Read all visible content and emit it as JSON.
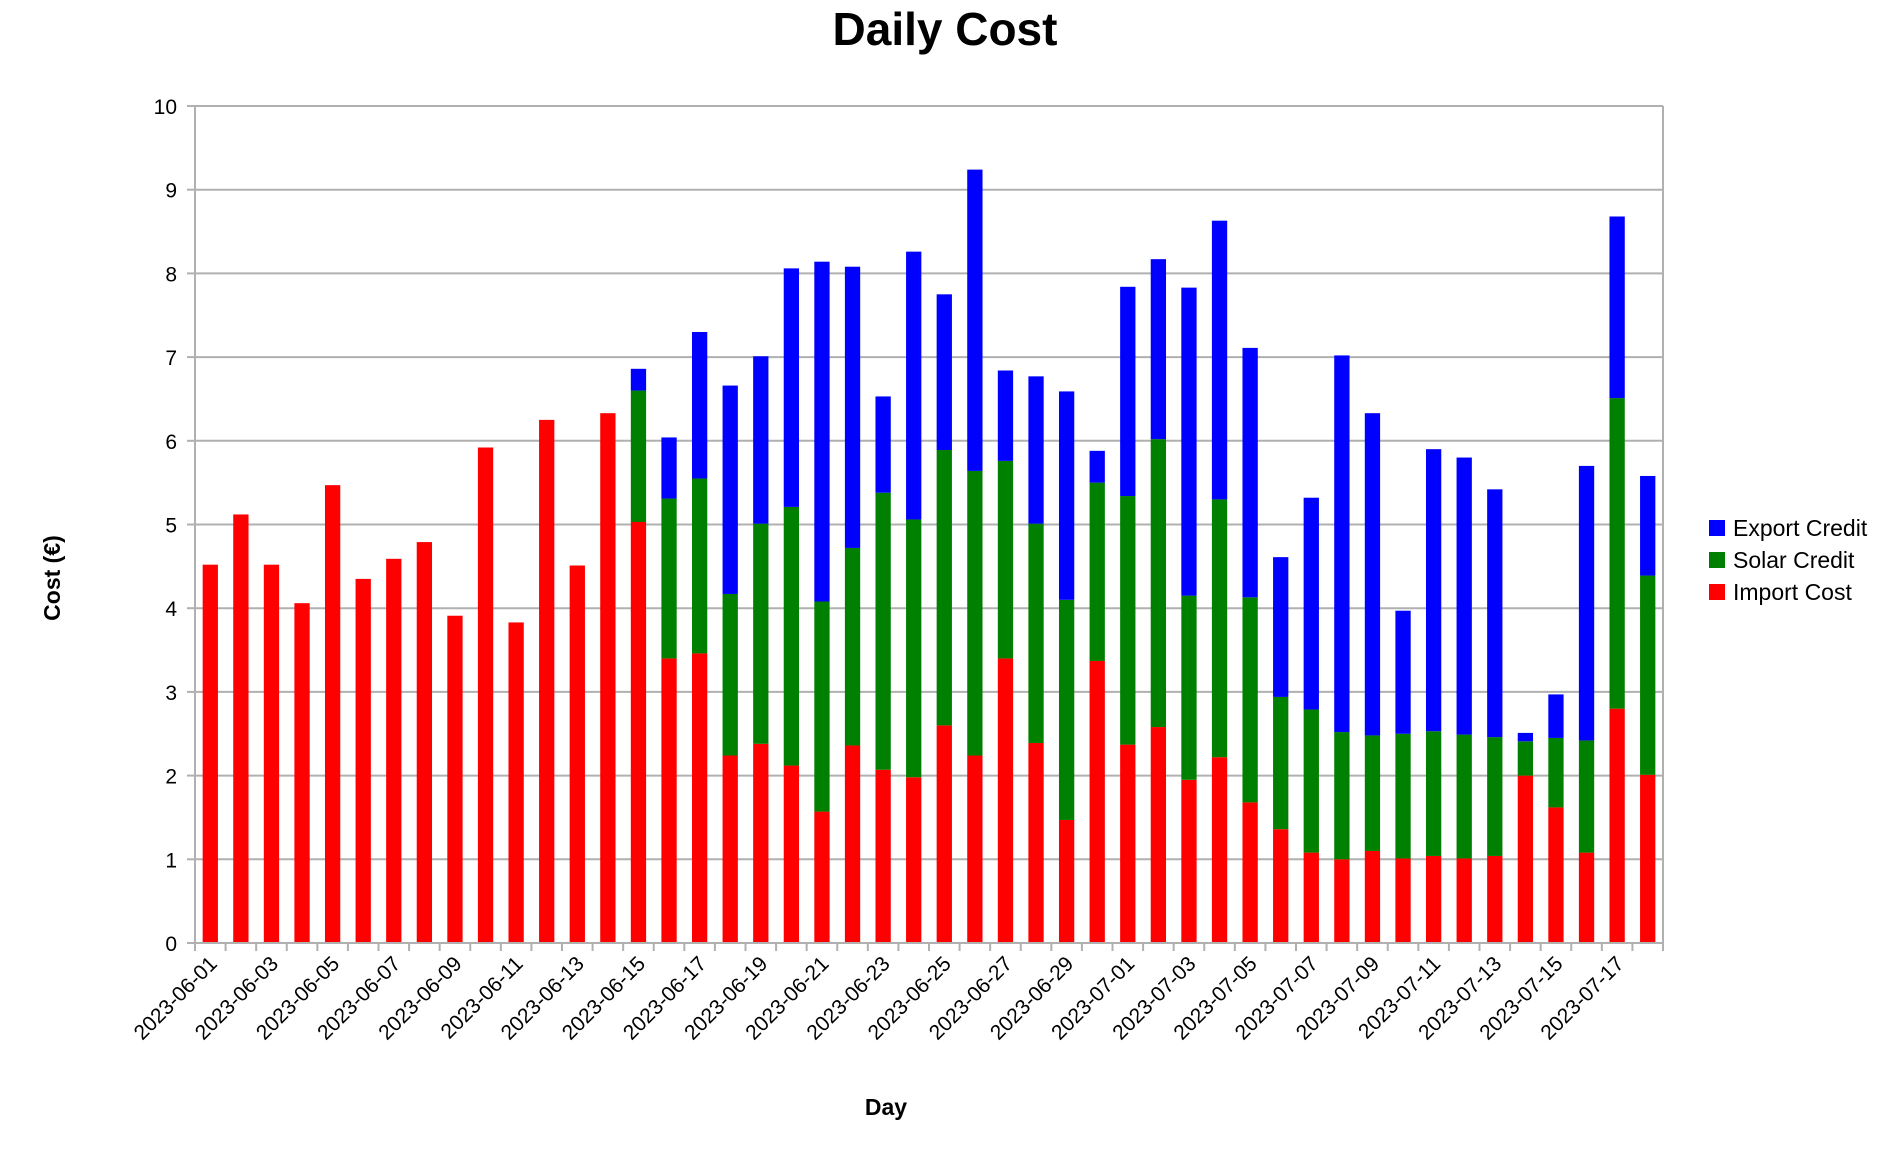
{
  "chart_data": {
    "type": "bar",
    "stacked": true,
    "title": "Daily Cost",
    "xlabel": "Day",
    "ylabel": "Cost (€)",
    "ylim": [
      0,
      10
    ],
    "yticks": [
      0,
      1,
      2,
      3,
      4,
      5,
      6,
      7,
      8,
      9,
      10
    ],
    "grid": true,
    "legend_position": "right",
    "categories": [
      "2023-06-01",
      "2023-06-02",
      "2023-06-03",
      "2023-06-04",
      "2023-06-05",
      "2023-06-06",
      "2023-06-07",
      "2023-06-08",
      "2023-06-09",
      "2023-06-10",
      "2023-06-11",
      "2023-06-12",
      "2023-06-13",
      "2023-06-14",
      "2023-06-15",
      "2023-06-16",
      "2023-06-17",
      "2023-06-18",
      "2023-06-19",
      "2023-06-20",
      "2023-06-21",
      "2023-06-22",
      "2023-06-23",
      "2023-06-24",
      "2023-06-25",
      "2023-06-26",
      "2023-06-27",
      "2023-06-28",
      "2023-06-29",
      "2023-06-30",
      "2023-07-01",
      "2023-07-02",
      "2023-07-03",
      "2023-07-04",
      "2023-07-05",
      "2023-07-06",
      "2023-07-07",
      "2023-07-08",
      "2023-07-09",
      "2023-07-10",
      "2023-07-11",
      "2023-07-12",
      "2023-07-13",
      "2023-07-14",
      "2023-07-15",
      "2023-07-16",
      "2023-07-17",
      "2023-07-18"
    ],
    "xtick_labels": [
      "2023-06-01",
      "2023-06-03",
      "2023-06-05",
      "2023-06-07",
      "2023-06-09",
      "2023-06-11",
      "2023-06-13",
      "2023-06-15",
      "2023-06-17",
      "2023-06-19",
      "2023-06-21",
      "2023-06-23",
      "2023-06-25",
      "2023-06-27",
      "2023-06-29",
      "2023-07-01",
      "2023-07-03",
      "2023-07-05",
      "2023-07-07",
      "2023-07-09",
      "2023-07-11",
      "2023-07-13",
      "2023-07-15",
      "2023-07-17"
    ],
    "series": [
      {
        "name": "Import Cost",
        "color": "#ff0000",
        "values": [
          4.52,
          5.12,
          4.52,
          4.06,
          5.47,
          4.35,
          4.59,
          4.79,
          3.91,
          5.92,
          3.83,
          6.25,
          4.51,
          6.33,
          5.03,
          3.4,
          3.46,
          2.24,
          2.38,
          2.12,
          1.57,
          2.36,
          2.07,
          1.98,
          2.6,
          2.24,
          3.4,
          2.39,
          1.47,
          3.37,
          2.37,
          2.58,
          1.95,
          2.22,
          1.68,
          1.36,
          1.08,
          1.0,
          1.1,
          1.01,
          1.04,
          1.01,
          1.04,
          2.0,
          1.62,
          1.08,
          2.8,
          2.01
        ]
      },
      {
        "name": "Solar Credit",
        "color": "#008000",
        "values": [
          0,
          0,
          0,
          0,
          0,
          0,
          0,
          0,
          0,
          0,
          0,
          0,
          0,
          0,
          1.57,
          1.91,
          2.09,
          1.93,
          2.63,
          3.09,
          2.51,
          2.36,
          3.31,
          3.08,
          3.29,
          3.4,
          2.36,
          2.62,
          2.63,
          2.13,
          2.97,
          3.44,
          2.2,
          3.08,
          2.45,
          1.58,
          1.71,
          1.52,
          1.38,
          1.49,
          1.49,
          1.48,
          1.42,
          0.41,
          0.83,
          1.34,
          3.71,
          2.38
        ]
      },
      {
        "name": "Export Credit",
        "color": "#0000ff",
        "values": [
          0,
          0,
          0,
          0,
          0,
          0,
          0,
          0,
          0,
          0,
          0,
          0,
          0,
          0,
          0.26,
          0.73,
          1.75,
          2.49,
          2.0,
          2.85,
          4.06,
          3.36,
          1.15,
          3.2,
          1.86,
          3.6,
          1.08,
          1.76,
          2.49,
          0.38,
          2.5,
          2.15,
          3.68,
          3.33,
          2.98,
          1.67,
          2.53,
          4.5,
          3.85,
          1.47,
          3.37,
          3.31,
          2.96,
          0.1,
          0.52,
          3.28,
          2.17,
          1.19
        ]
      }
    ]
  }
}
